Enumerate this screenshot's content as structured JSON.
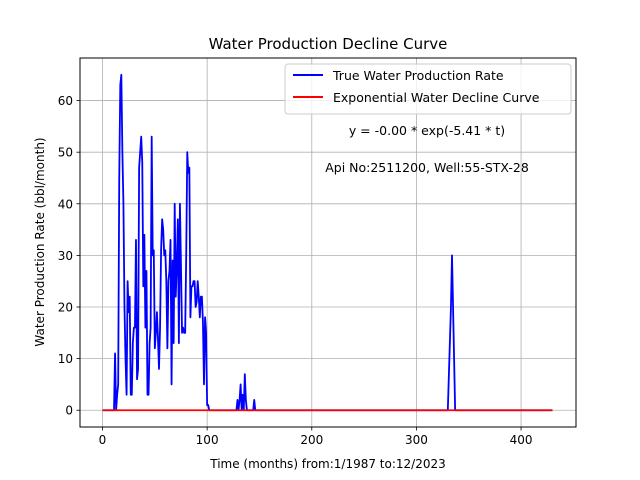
{
  "chart_data": {
    "type": "line",
    "title": "Water Production Decline Curve",
    "xlabel": "Time (months) from:1/1987 to:12/2023",
    "ylabel": "Water Production Rate (bbl/month)",
    "xlim": [
      -21.5,
      452.5
    ],
    "ylim": [
      -3.25,
      68.25
    ],
    "xticks": [
      0,
      100,
      200,
      300,
      400
    ],
    "yticks": [
      0,
      10,
      20,
      30,
      40,
      50,
      60
    ],
    "grid": true,
    "legend_position": "top-right",
    "annotations": [
      "y = -0.00 * exp(-5.41 * t)",
      "Api No:2511200, Well:55-STX-28"
    ],
    "series": [
      {
        "name": "True Water Production Rate",
        "color": "#0000ff",
        "points": [
          [
            0,
            0
          ],
          [
            10,
            0
          ],
          [
            11,
            0
          ],
          [
            12,
            11
          ],
          [
            13,
            0
          ],
          [
            14,
            3
          ],
          [
            15,
            5
          ],
          [
            16,
            45
          ],
          [
            17,
            63
          ],
          [
            18,
            65
          ],
          [
            19,
            50
          ],
          [
            20,
            40
          ],
          [
            21,
            20
          ],
          [
            22,
            10
          ],
          [
            23,
            3
          ],
          [
            24,
            25
          ],
          [
            25,
            19
          ],
          [
            26,
            22
          ],
          [
            27,
            3
          ],
          [
            28,
            3
          ],
          [
            29,
            13
          ],
          [
            30,
            16
          ],
          [
            31,
            16
          ],
          [
            32,
            33
          ],
          [
            33,
            6
          ],
          [
            34,
            8
          ],
          [
            35,
            47
          ],
          [
            36,
            50
          ],
          [
            37,
            53
          ],
          [
            38,
            48
          ],
          [
            39,
            24
          ],
          [
            40,
            34
          ],
          [
            41,
            16
          ],
          [
            42,
            27
          ],
          [
            43,
            3
          ],
          [
            44,
            3
          ],
          [
            45,
            13
          ],
          [
            46,
            16
          ],
          [
            47,
            53
          ],
          [
            48,
            30
          ],
          [
            49,
            31
          ],
          [
            50,
            12
          ],
          [
            51,
            15
          ],
          [
            52,
            19
          ],
          [
            53,
            14
          ],
          [
            54,
            8
          ],
          [
            55,
            16
          ],
          [
            56,
            31
          ],
          [
            57,
            37
          ],
          [
            58,
            35
          ],
          [
            59,
            30
          ],
          [
            60,
            31
          ],
          [
            61,
            25
          ],
          [
            62,
            12
          ],
          [
            63,
            25
          ],
          [
            64,
            27
          ],
          [
            65,
            33
          ],
          [
            66,
            5
          ],
          [
            67,
            29
          ],
          [
            68,
            13
          ],
          [
            69,
            40
          ],
          [
            70,
            22
          ],
          [
            71,
            28
          ],
          [
            72,
            37
          ],
          [
            73,
            13
          ],
          [
            74,
            40
          ],
          [
            75,
            28
          ],
          [
            76,
            15
          ],
          [
            77,
            16
          ],
          [
            78,
            15
          ],
          [
            79,
            15
          ],
          [
            80,
            30
          ],
          [
            81,
            50
          ],
          [
            82,
            46
          ],
          [
            83,
            47
          ],
          [
            84,
            18
          ],
          [
            85,
            24
          ],
          [
            86,
            24
          ],
          [
            87,
            25
          ],
          [
            88,
            25
          ],
          [
            89,
            20
          ],
          [
            90,
            21
          ],
          [
            91,
            25
          ],
          [
            92,
            22
          ],
          [
            93,
            18
          ],
          [
            94,
            22
          ],
          [
            95,
            22
          ],
          [
            96,
            17
          ],
          [
            97,
            5
          ],
          [
            98,
            18
          ],
          [
            99,
            15
          ],
          [
            100,
            1
          ],
          [
            101,
            1
          ],
          [
            102,
            0
          ],
          [
            128,
            0
          ],
          [
            129,
            2
          ],
          [
            130,
            0
          ],
          [
            131,
            2
          ],
          [
            132,
            5
          ],
          [
            133,
            0
          ],
          [
            134,
            3
          ],
          [
            135,
            0
          ],
          [
            136,
            7
          ],
          [
            137,
            2
          ],
          [
            138,
            0
          ],
          [
            144,
            0
          ],
          [
            145,
            2
          ],
          [
            146,
            0
          ],
          [
            330,
            0
          ],
          [
            333,
            20
          ],
          [
            334,
            30
          ],
          [
            335,
            20
          ],
          [
            337,
            0
          ],
          [
            430,
            0
          ]
        ]
      },
      {
        "name": "Exponential Water Decline Curve",
        "color": "#ff0000",
        "points": [
          [
            0,
            0
          ],
          [
            430,
            0
          ]
        ]
      }
    ]
  }
}
